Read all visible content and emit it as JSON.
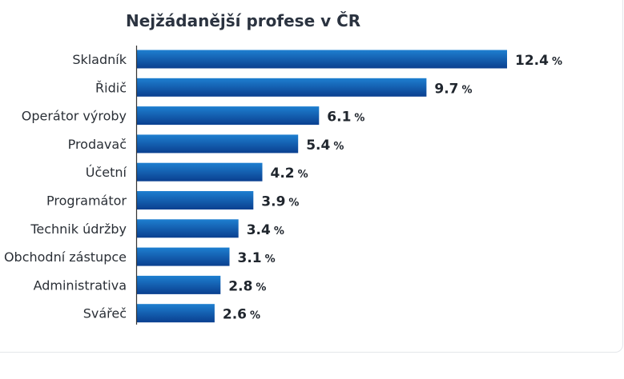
{
  "chart_data": {
    "type": "bar",
    "orientation": "horizontal",
    "title": "Nejžádanější profese v ČR",
    "categories": [
      "Skladník",
      "Řidič",
      "Operátor výroby",
      "Prodavač",
      "Účetní",
      "Programátor",
      "Technik údržby",
      "Obchodní zástupce",
      "Administrativa",
      "Svářeč"
    ],
    "values": [
      12.4,
      9.7,
      6.1,
      5.4,
      4.2,
      3.9,
      3.4,
      3.1,
      2.8,
      2.6
    ],
    "value_labels": [
      "12.4",
      "9.7",
      "6.1",
      "5.4",
      "4.2",
      "3.9",
      "3.4",
      "3.1",
      "2.8",
      "2.6"
    ],
    "unit": "%",
    "xlim": [
      0,
      12.4
    ],
    "grid": false,
    "colors": {
      "bar_top": "#1e7fd0",
      "bar_bottom": "#0a3f8f",
      "axis": "#333333"
    }
  }
}
